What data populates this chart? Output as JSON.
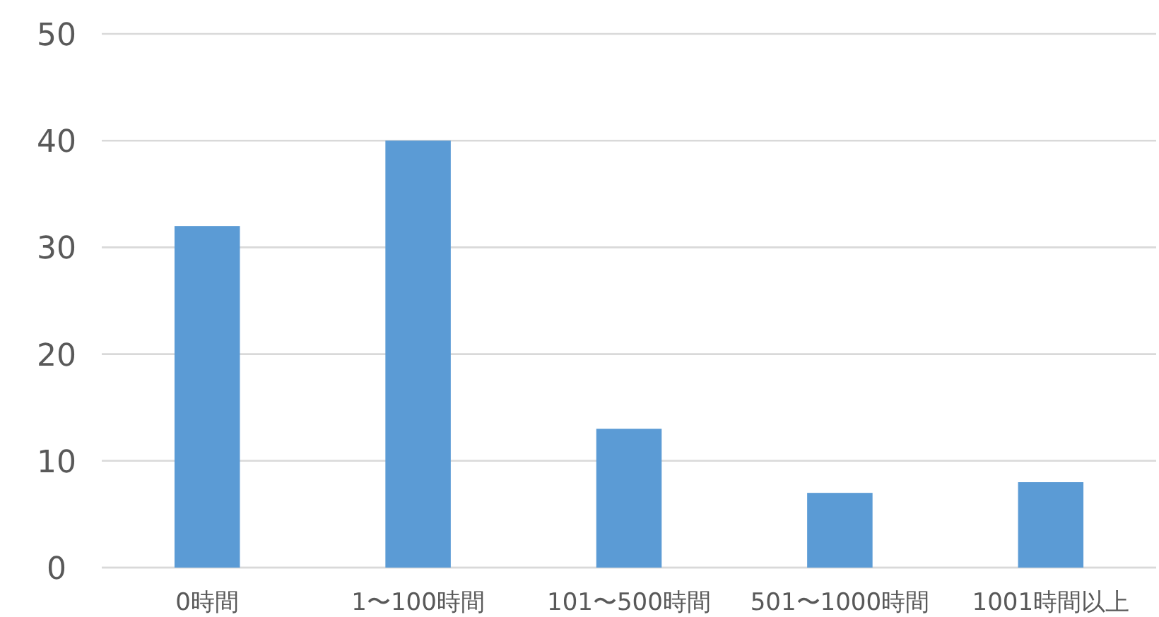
{
  "chart_data": {
    "type": "bar",
    "categories": [
      "0時間",
      "1〜100時間",
      "101〜500時間",
      "501〜1000時間",
      "1001時間以上"
    ],
    "values": [
      32,
      40,
      13,
      7,
      8
    ],
    "color": "#5b9bd5",
    "ylim": [
      0,
      50
    ],
    "yticks": [
      0,
      10,
      20,
      30,
      40,
      50
    ],
    "grid": "y"
  }
}
